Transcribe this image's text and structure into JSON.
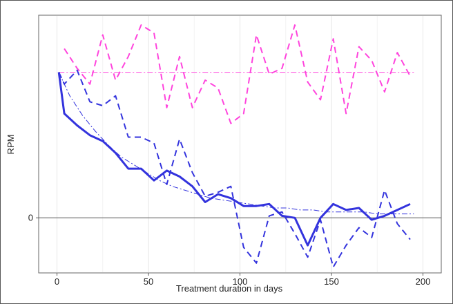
{
  "chart_data": {
    "type": "line",
    "title": "",
    "xlabel": "Treatment duration in days",
    "ylabel": "RPM",
    "xlim": [
      -10,
      210
    ],
    "ylim": [
      -0.28,
      1.03
    ],
    "x_ticks": [
      {
        "value": 0,
        "label": "0"
      },
      {
        "value": 50,
        "label": "50"
      },
      {
        "value": 100,
        "label": "100"
      },
      {
        "value": 150,
        "label": "150"
      },
      {
        "value": 200,
        "label": "200"
      }
    ],
    "y_ticks": [
      {
        "value": 0,
        "label": "0"
      }
    ],
    "grid": true,
    "zero_line": true,
    "series": [
      {
        "style": "dashed",
        "color": "#ff44dd",
        "width": 2,
        "x": [
          4,
          11,
          18,
          25,
          32,
          39,
          46,
          53,
          60,
          67,
          74,
          81,
          88,
          95,
          102,
          109,
          116,
          123,
          130,
          137,
          144,
          151,
          158,
          165,
          172,
          179,
          186,
          193
        ],
        "y": [
          0.86,
          0.76,
          0.68,
          0.93,
          0.7,
          0.82,
          0.98,
          0.94,
          0.56,
          0.82,
          0.56,
          0.7,
          0.66,
          0.48,
          0.53,
          0.93,
          0.73,
          0.76,
          0.98,
          0.69,
          0.6,
          0.91,
          0.53,
          0.87,
          0.8,
          0.64,
          0.84,
          0.72
        ]
      },
      {
        "style": "dashdot",
        "color": "#ff44dd",
        "width": 1,
        "x": [
          1,
          195
        ],
        "y": [
          0.74,
          0.74
        ]
      },
      {
        "style": "dashed",
        "color": "#3333dd",
        "width": 2,
        "x": [
          1,
          4,
          11,
          18,
          25,
          32,
          39,
          46,
          53,
          60,
          67,
          74,
          81,
          88,
          95,
          102,
          109,
          116,
          123,
          130,
          137,
          144,
          151,
          158,
          165,
          172,
          179,
          186,
          193
        ],
        "y": [
          0.74,
          0.68,
          0.75,
          0.59,
          0.57,
          0.62,
          0.41,
          0.41,
          0.38,
          0.17,
          0.4,
          0.23,
          0.11,
          0.13,
          0.16,
          -0.15,
          -0.23,
          0.01,
          0.03,
          -0.08,
          -0.2,
          -0.01,
          -0.25,
          -0.14,
          -0.05,
          -0.1,
          0.14,
          -0.03,
          -0.11
        ]
      },
      {
        "style": "dashdot",
        "color": "#3333dd",
        "width": 1,
        "x": [
          1,
          7,
          14,
          21,
          28,
          35,
          42,
          49,
          56,
          63,
          70,
          77,
          84,
          91,
          98,
          105,
          112,
          119,
          126,
          133,
          140,
          147,
          154,
          161,
          168,
          175,
          182,
          189,
          195
        ],
        "y": [
          0.74,
          0.62,
          0.52,
          0.44,
          0.37,
          0.31,
          0.27,
          0.23,
          0.19,
          0.16,
          0.14,
          0.12,
          0.1,
          0.09,
          0.08,
          0.07,
          0.06,
          0.05,
          0.05,
          0.04,
          0.04,
          0.03,
          0.03,
          0.03,
          0.03,
          0.02,
          0.02,
          0.02,
          0.02
        ]
      },
      {
        "style": "solid",
        "color": "#3333dd",
        "width": 3,
        "x": [
          1,
          4,
          11,
          18,
          25,
          32,
          39,
          46,
          53,
          60,
          67,
          74,
          81,
          88,
          95,
          102,
          109,
          116,
          123,
          130,
          137,
          144,
          151,
          158,
          165,
          172,
          179,
          186,
          193
        ],
        "y": [
          0.74,
          0.53,
          0.47,
          0.42,
          0.39,
          0.33,
          0.25,
          0.25,
          0.19,
          0.24,
          0.21,
          0.16,
          0.08,
          0.12,
          0.1,
          0.06,
          0.06,
          0.07,
          0.01,
          0.0,
          -0.14,
          0.0,
          0.07,
          0.04,
          0.05,
          -0.01,
          0.01,
          0.04,
          0.07
        ]
      }
    ]
  }
}
